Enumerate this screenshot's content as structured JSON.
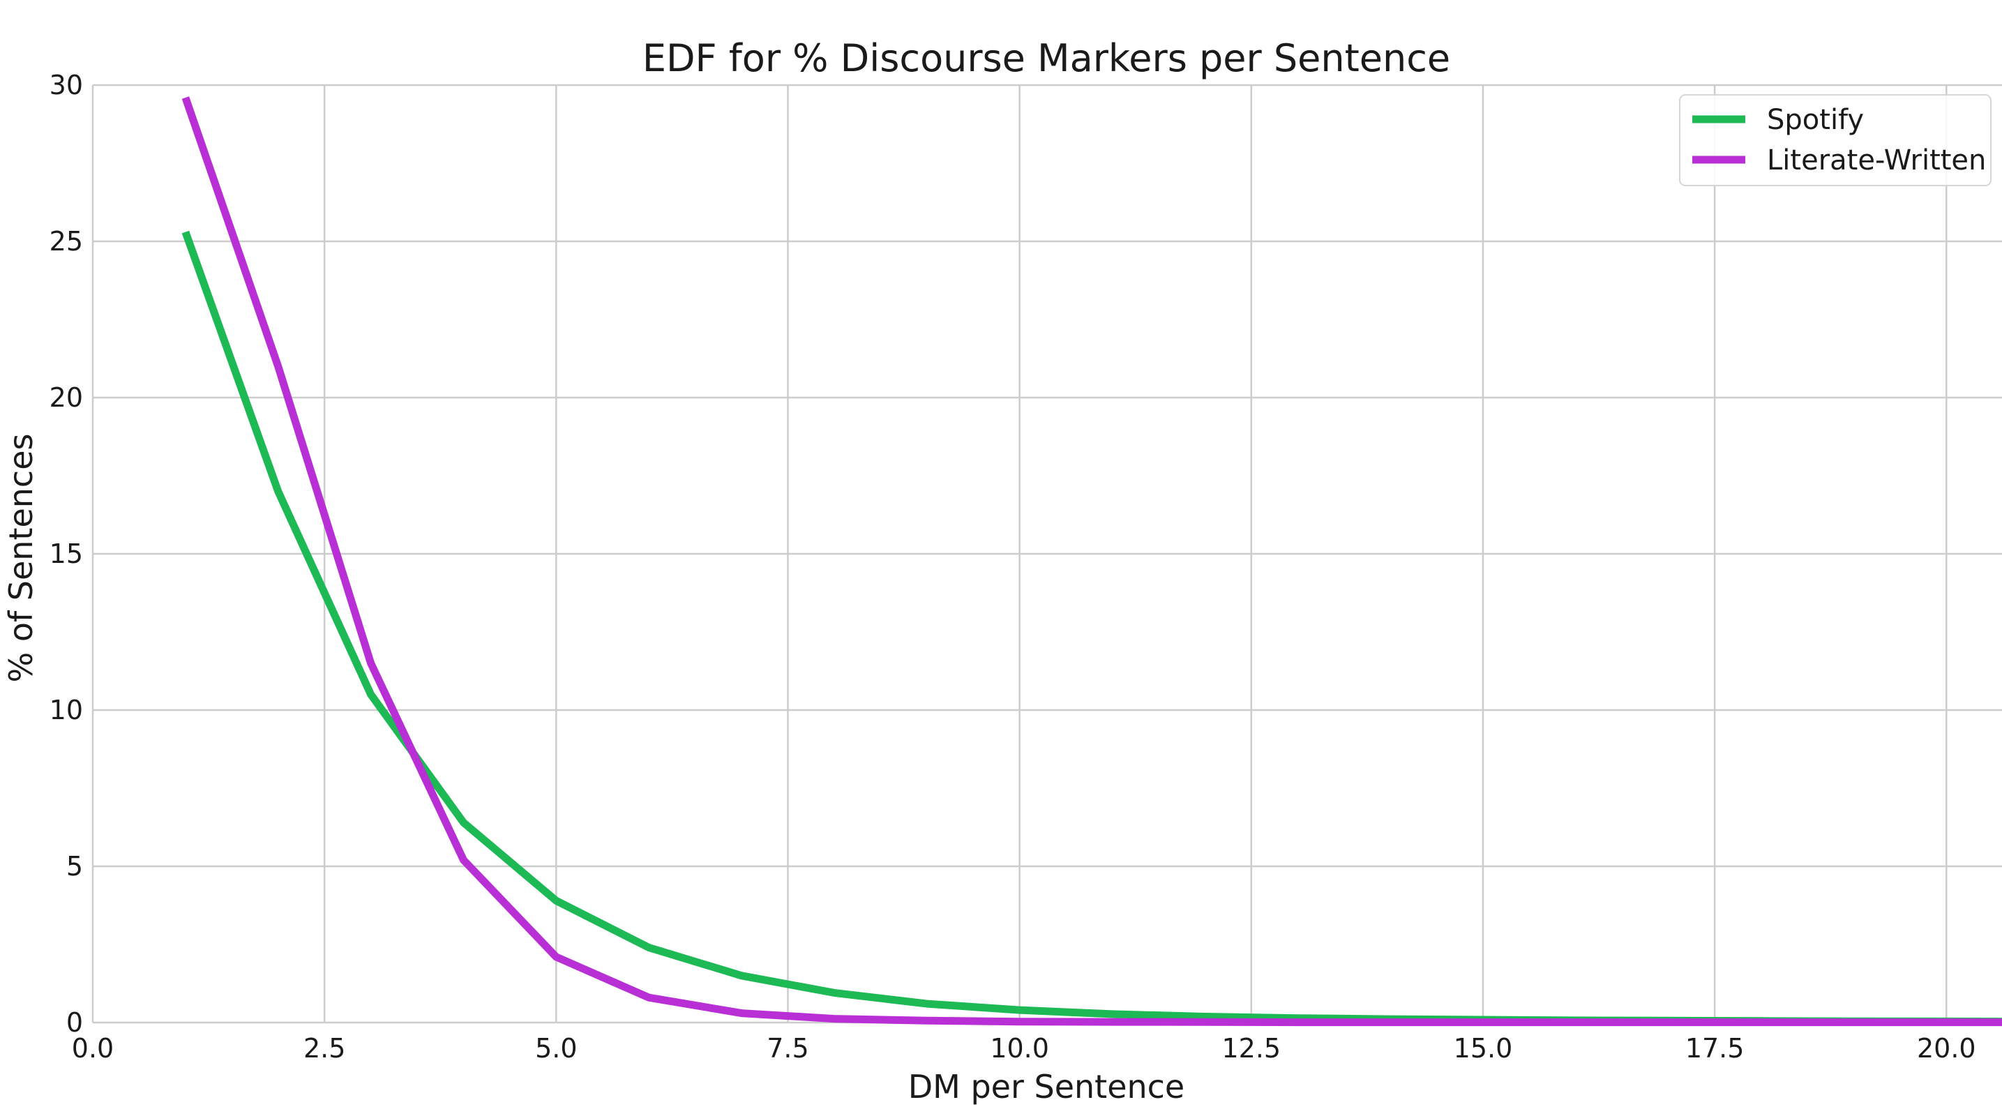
{
  "chart_data": {
    "type": "line",
    "title": "EDF for % Discourse Markers per Sentence",
    "xlabel": "DM per Sentence",
    "ylabel": "% of Sentences",
    "xlim": [
      0,
      20.6
    ],
    "ylim": [
      0,
      30
    ],
    "xticks": [
      "0.0",
      "2.5",
      "5.0",
      "7.5",
      "10.0",
      "12.5",
      "15.0",
      "17.5",
      "20.0"
    ],
    "xtick_values": [
      0,
      2.5,
      5,
      7.5,
      10,
      12.5,
      15,
      17.5,
      20
    ],
    "yticks": [
      "0",
      "5",
      "10",
      "15",
      "20",
      "25",
      "30"
    ],
    "ytick_values": [
      0,
      5,
      10,
      15,
      20,
      25,
      30
    ],
    "grid": true,
    "legend_position": "top-right",
    "x": [
      1,
      2,
      3,
      4,
      5,
      6,
      7,
      8,
      9,
      10,
      11,
      12,
      13,
      14,
      15,
      16,
      17,
      18,
      19,
      20,
      21
    ],
    "series": [
      {
        "name": "Spotify",
        "color": "#1db954",
        "values": [
          25.3,
          17.0,
          10.5,
          6.4,
          3.9,
          2.4,
          1.5,
          0.95,
          0.6,
          0.4,
          0.27,
          0.19,
          0.14,
          0.11,
          0.09,
          0.07,
          0.06,
          0.05,
          0.04,
          0.035,
          0.03
        ]
      },
      {
        "name": "Literate-Written",
        "color": "#b92fd6",
        "values": [
          29.6,
          21.0,
          11.5,
          5.2,
          2.1,
          0.8,
          0.3,
          0.12,
          0.06,
          0.03,
          0.02,
          0.015,
          0.01,
          0.01,
          0.01,
          0.01,
          0.01,
          0.01,
          0.01,
          0.01,
          0.01
        ]
      }
    ]
  }
}
